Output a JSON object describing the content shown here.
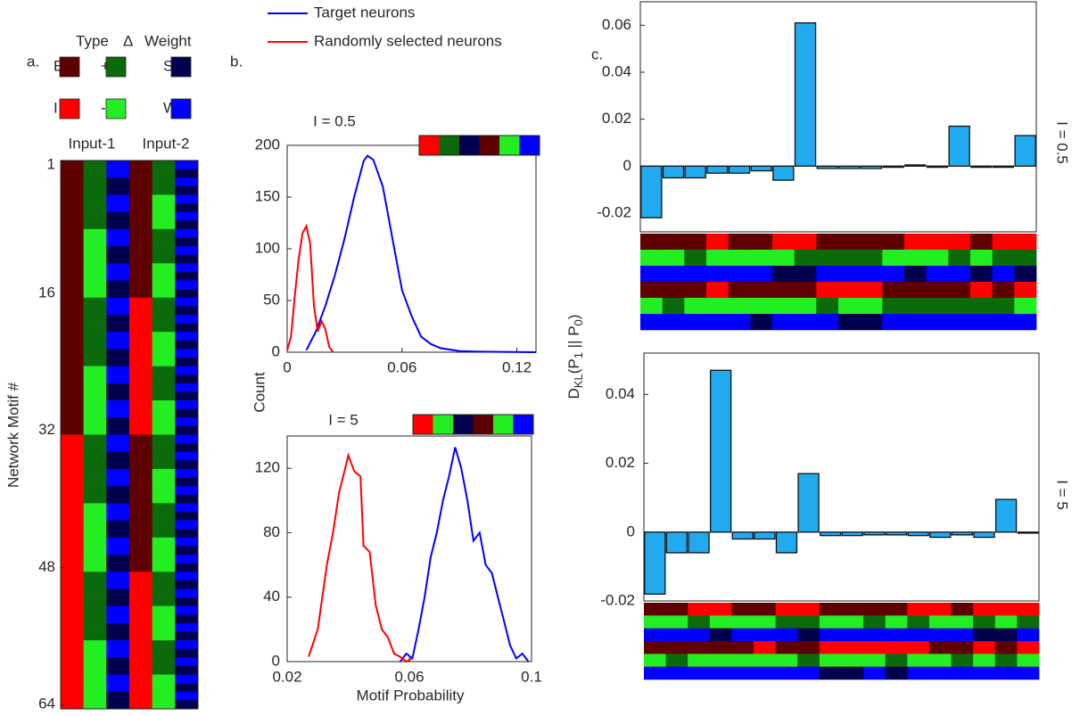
{
  "panel_labels": {
    "a": "a.",
    "b": "b.",
    "c": "c."
  },
  "legend_a": {
    "headers": [
      "Type",
      "Δ",
      "Weight"
    ],
    "items": [
      {
        "code": "E",
        "color": "#5e0000"
      },
      {
        "code": "+",
        "color": "#0b6b0b"
      },
      {
        "code": "S",
        "color": "#00004e"
      },
      {
        "code": "I",
        "color": "#ff0000"
      },
      {
        "code": "-",
        "color": "#22ee22"
      },
      {
        "code": "W",
        "color": "#0000ff"
      }
    ]
  },
  "motif_table": {
    "ylabel": "Network Motif #",
    "groups": [
      "Input-1",
      "Input-2"
    ],
    "yticks": [
      1,
      16,
      32,
      48,
      64
    ],
    "columns": [
      "EEEEEEEEEEEEEEEEEEEEEEEEEEEEEEEEIIIIIIIIIIIIIIIIIIIIIIIIIIIIIIII",
      "++++++++--------++++++++--------++++++++--------++++++++--------",
      "WWSSWWSSWWSSWWSSWWSSWWSSWWSSWWSSWWSSWWSSWWSSWWSSWWSSWWSSWWSSWWSS",
      "EEEEEEEEEEEEEEEEIIIIIIIIIIIIIIIIEEEEEEEEEEEEEEEEIIIIIIIIIIIIIIII",
      "++++----++++----++++----++++----++++----++++----++++----++++----",
      "WSWSWSWSWSWSWSWSWSWSWSWSWSWSWSWSWSWSWSWSWSWSWSWSWSWSWSWSWSWSWSWS"
    ]
  },
  "b_labels": {
    "ylabel": "Count",
    "xlabel": "Motif Probability"
  },
  "c_ylabel": [
    "D",
    "KL",
    "(P",
    "1",
    " || P",
    "0",
    ")"
  ],
  "chart_data": [
    {
      "type": "line",
      "title": "I = 0.5",
      "motif": "I+SE-W",
      "xlim": [
        0,
        0.13
      ],
      "ylim": [
        0,
        200
      ],
      "xticks": [
        0,
        0.06,
        0.12
      ],
      "yticks": [
        0,
        50,
        100,
        150,
        200
      ],
      "series": [
        {
          "name": "Target neurons",
          "color": "#0000ff",
          "x": [
            0.01,
            0.015,
            0.02,
            0.025,
            0.03,
            0.035,
            0.04,
            0.042,
            0.045,
            0.05,
            0.055,
            0.06,
            0.065,
            0.07,
            0.075,
            0.08,
            0.09,
            0.1,
            0.13
          ],
          "values": [
            2,
            20,
            45,
            75,
            110,
            150,
            185,
            190,
            186,
            160,
            110,
            60,
            35,
            15,
            8,
            4,
            1,
            0.5,
            0
          ]
        },
        {
          "name": "Randomly selected neurons",
          "color": "#ff0000",
          "x": [
            0,
            0.002,
            0.004,
            0.006,
            0.008,
            0.01,
            0.012,
            0.014,
            0.016,
            0.018,
            0.02,
            0.022,
            0.024
          ],
          "values": [
            2,
            15,
            55,
            90,
            115,
            122,
            105,
            45,
            20,
            30,
            22,
            5,
            0
          ]
        }
      ]
    },
    {
      "type": "line",
      "title": "I = 5",
      "motif": "I-SE-W",
      "xlim": [
        0.02,
        0.1
      ],
      "ylim": [
        0,
        140
      ],
      "xticks": [
        0.02,
        0.06,
        0.1
      ],
      "yticks": [
        0,
        40,
        80,
        120
      ],
      "series": [
        {
          "color": "#0000ff",
          "x": [
            0.057,
            0.059,
            0.061,
            0.063,
            0.065,
            0.067,
            0.069,
            0.071,
            0.073,
            0.075,
            0.077,
            0.079,
            0.081,
            0.083,
            0.085,
            0.087,
            0.089,
            0.091,
            0.093,
            0.095,
            0.097,
            0.099
          ],
          "values": [
            0,
            5,
            2,
            20,
            40,
            65,
            80,
            100,
            115,
            133,
            120,
            100,
            75,
            80,
            60,
            55,
            40,
            25,
            10,
            2,
            5,
            0
          ]
        },
        {
          "color": "#ff0000",
          "x": [
            0.027,
            0.03,
            0.033,
            0.035,
            0.037,
            0.039,
            0.04,
            0.042,
            0.044,
            0.045,
            0.047,
            0.049,
            0.051,
            0.053,
            0.055,
            0.057,
            0.059,
            0.061
          ],
          "values": [
            3,
            20,
            60,
            80,
            105,
            120,
            128,
            118,
            115,
            72,
            68,
            35,
            20,
            15,
            5,
            3,
            0,
            2
          ]
        }
      ]
    },
    {
      "type": "bar",
      "side_label": "I = 0.5",
      "color": "#22aaf0",
      "ylim": [
        -0.028,
        0.07
      ],
      "yticks": [
        -0.02,
        0,
        0.02,
        0.04,
        0.06
      ],
      "values": [
        -0.022,
        -0.005,
        -0.005,
        -0.003,
        -0.003,
        -0.002,
        -0.006,
        0.061,
        -0.001,
        -0.001,
        -0.001,
        -0.0005,
        0.0005,
        -0.0005,
        0.017,
        -0.0005,
        -0.0005,
        0.013
      ],
      "motifs": [
        "E-WE-W",
        "E-WE+W",
        "E+WE-W",
        "I-WI-W",
        "E-WE-W",
        "E-WE-S",
        "I-SE-W",
        "I+SE-W",
        "E+WI+W",
        "E+WI-S",
        "E+WI-S",
        "E-WE+W",
        "I-SE+W",
        "I-WE+W",
        "I+WE+W",
        "E-SI+W",
        "I+WE+W",
        "I+SI-W"
      ]
    },
    {
      "type": "bar",
      "side_label": "I = 5",
      "color": "#22aaf0",
      "ylim": [
        -0.02,
        0.052
      ],
      "yticks": [
        -0.02,
        0,
        0.02,
        0.04
      ],
      "values": [
        -0.018,
        -0.006,
        -0.006,
        0.047,
        -0.002,
        -0.002,
        -0.006,
        0.017,
        -0.001,
        -0.001,
        -0.0008,
        -0.0008,
        -0.001,
        -0.0015,
        -0.0008,
        -0.0015,
        0.0095,
        -0.0003
      ],
      "motifs": [
        "E-WE-W",
        "E-WE+W",
        "I+WE-W",
        "I-SE-W",
        "E-WE-W",
        "E-WI-W",
        "I+WE-W",
        "I+SE+W",
        "E-WI-S",
        "E-WI-S",
        "E+WI-W",
        "E-WI+S",
        "I+WI-W",
        "I-WE-W",
        "E-WE+W",
        "I+SI-W",
        "I-SE+W",
        "I+WI-W"
      ]
    }
  ]
}
